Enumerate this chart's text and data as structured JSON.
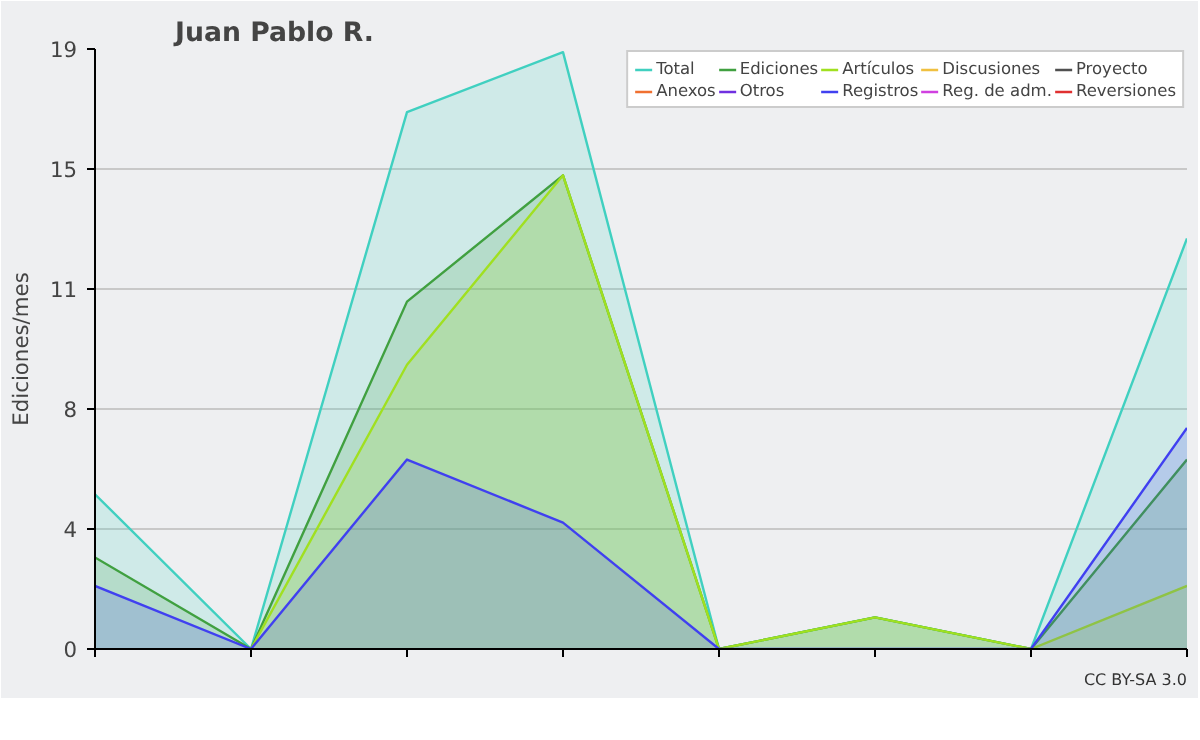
{
  "chart_data": {
    "type": "area",
    "title": "Juan Pablo R.",
    "ylabel": "Ediciones/mes",
    "categories": [
      null,
      null,
      null,
      null,
      null,
      null,
      null,
      null
    ],
    "series": [
      {
        "name": "Total",
        "color": "#40d0c0",
        "values": [
          4.9,
          0,
          17.0,
          18.9,
          0,
          1.0,
          0,
          13.0
        ]
      },
      {
        "name": "Ediciones",
        "color": "#40a040",
        "values": [
          2.9,
          0,
          11.0,
          15.0,
          0,
          1.0,
          0,
          6.0
        ]
      },
      {
        "name": "Artículos",
        "color": "#a0e020",
        "values": [
          null,
          0,
          9.0,
          15.0,
          0,
          1.0,
          0,
          2.0
        ]
      },
      {
        "name": "Discusiones",
        "color": "#f0c040",
        "values": [
          null,
          null,
          null,
          null,
          null,
          null,
          null,
          null
        ]
      },
      {
        "name": "Proyecto",
        "color": "#505050",
        "values": [
          null,
          null,
          null,
          null,
          null,
          null,
          null,
          null
        ]
      },
      {
        "name": "Anexos",
        "color": "#f07030",
        "values": [
          null,
          null,
          null,
          null,
          null,
          null,
          null,
          null
        ]
      },
      {
        "name": "Otros",
        "color": "#7030e0",
        "values": [
          null,
          null,
          null,
          null,
          null,
          null,
          null,
          null
        ]
      },
      {
        "name": "Registros",
        "color": "#4040f0",
        "values": [
          2.0,
          0,
          6.0,
          4.0,
          0,
          0,
          0,
          7.0
        ]
      },
      {
        "name": "Reg. de adm.",
        "color": "#d040e0",
        "values": [
          null,
          null,
          null,
          null,
          null,
          null,
          null,
          null
        ]
      },
      {
        "name": "Reversiones",
        "color": "#e03030",
        "values": [
          null,
          null,
          null,
          null,
          null,
          null,
          null,
          null
        ]
      }
    ],
    "ylim": [
      0,
      19
    ],
    "yticks": [
      0,
      {
        "value": 3.8,
        "label": "4"
      },
      {
        "value": 7.6,
        "label": "8"
      },
      {
        "value": 11.4,
        "label": "11"
      },
      {
        "value": 15.2,
        "label": "15"
      },
      19
    ],
    "grid": "y",
    "legend": "top right",
    "tick_labels": "y",
    "annotations": [
      "CC BY-SA 3.0"
    ]
  }
}
